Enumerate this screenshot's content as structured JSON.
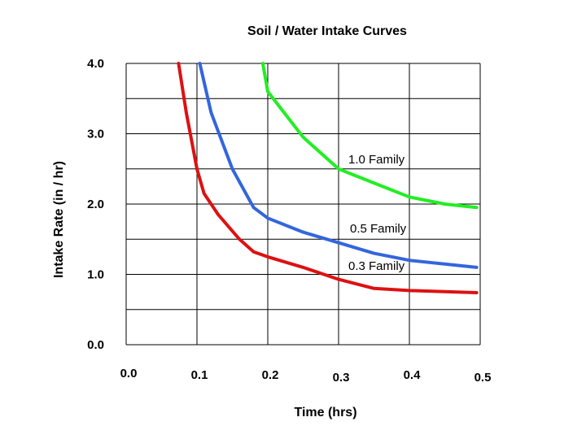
{
  "chart_data": {
    "type": "line",
    "title": "Soil / Water Intake Curves",
    "xlabel": "Time (hrs)",
    "ylabel": "Intake Rate (in / hr)",
    "xlim": [
      0.0,
      0.5
    ],
    "ylim": [
      0.0,
      4.0
    ],
    "x_ticks": [
      "0.0",
      "0.1",
      "0.2",
      "0.3",
      "0.4",
      "0.5"
    ],
    "y_ticks": [
      "0.0",
      "1.0",
      "2.0",
      "3.0",
      "4.0"
    ],
    "grid": true,
    "series": [
      {
        "name": "1.0 Family",
        "color": "#22ee22",
        "points": [
          [
            0.193,
            4.0
          ],
          [
            0.2,
            3.6
          ],
          [
            0.25,
            2.95
          ],
          [
            0.3,
            2.5
          ],
          [
            0.35,
            2.3
          ],
          [
            0.4,
            2.1
          ],
          [
            0.45,
            2.0
          ],
          [
            0.495,
            1.95
          ]
        ]
      },
      {
        "name": "0.5 Family",
        "color": "#3366dd",
        "points": [
          [
            0.104,
            4.0
          ],
          [
            0.12,
            3.3
          ],
          [
            0.15,
            2.5
          ],
          [
            0.18,
            1.95
          ],
          [
            0.2,
            1.8
          ],
          [
            0.25,
            1.6
          ],
          [
            0.3,
            1.45
          ],
          [
            0.35,
            1.3
          ],
          [
            0.4,
            1.2
          ],
          [
            0.495,
            1.1
          ]
        ]
      },
      {
        "name": "0.3 Family",
        "color": "#dd1111",
        "points": [
          [
            0.074,
            4.0
          ],
          [
            0.085,
            3.3
          ],
          [
            0.1,
            2.5
          ],
          [
            0.11,
            2.15
          ],
          [
            0.13,
            1.85
          ],
          [
            0.16,
            1.5
          ],
          [
            0.18,
            1.32
          ],
          [
            0.2,
            1.25
          ],
          [
            0.25,
            1.1
          ],
          [
            0.3,
            0.93
          ],
          [
            0.35,
            0.8
          ],
          [
            0.4,
            0.77
          ],
          [
            0.495,
            0.74
          ]
        ]
      }
    ]
  }
}
